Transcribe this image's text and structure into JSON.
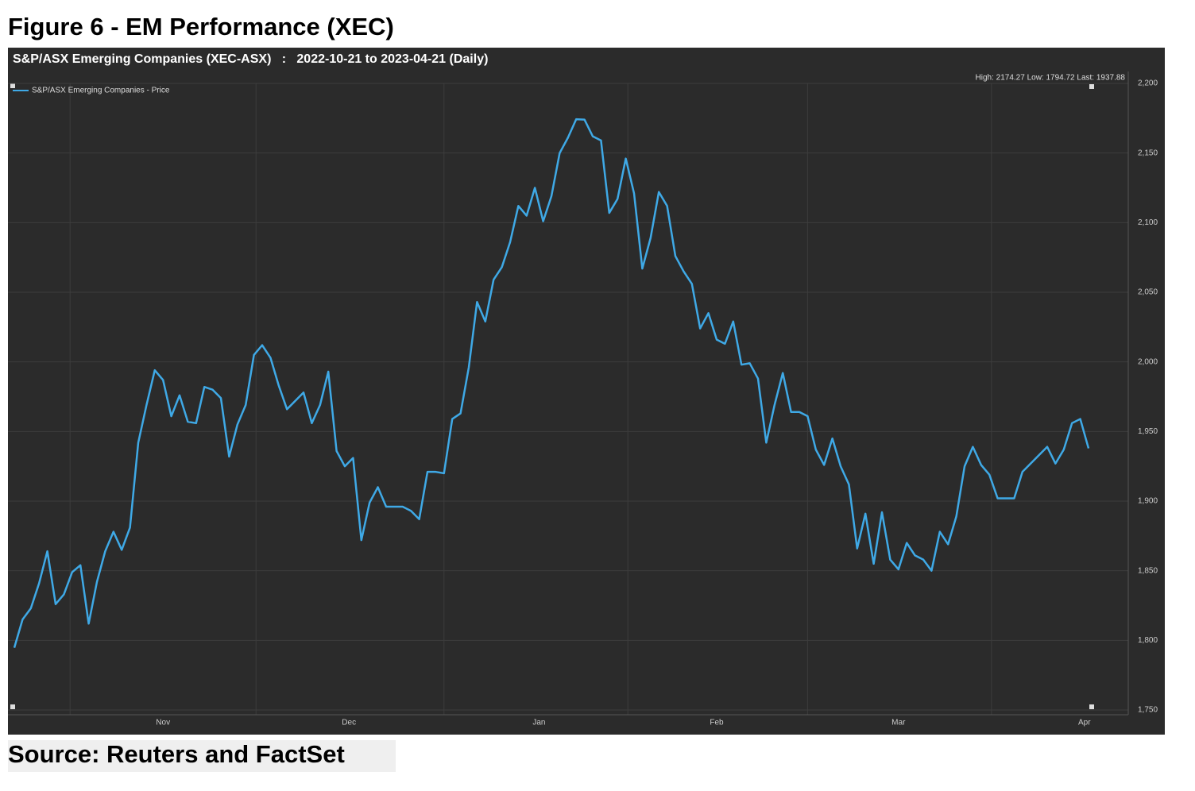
{
  "chart_data": {
    "type": "line",
    "figure_title": "Figure 6 - EM Performance (XEC)",
    "title": "S&P/ASX Emerging Companies (XEC-ASX)   :   2022-10-21 to 2023-04-21 (Daily)",
    "annotation": "High: 2174.27 Low: 1794.72 Last: 1937.88",
    "source": "Source: Reuters and FactSet",
    "xticks": [
      {
        "value": 18,
        "label": "Nov"
      },
      {
        "value": 40.5,
        "label": "Dec"
      },
      {
        "value": 63.5,
        "label": "Jan"
      },
      {
        "value": 85,
        "label": "Feb"
      },
      {
        "value": 107,
        "label": "Mar"
      },
      {
        "value": 129.5,
        "label": "Apr"
      }
    ],
    "ylim": [
      1750,
      2200
    ],
    "yticks": [
      {
        "value": 1750,
        "label": "1,750"
      },
      {
        "value": 1800,
        "label": "1,800"
      },
      {
        "value": 1850,
        "label": "1,850"
      },
      {
        "value": 1900,
        "label": "1,900"
      },
      {
        "value": 1950,
        "label": "1,950"
      },
      {
        "value": 2000,
        "label": "2,000"
      },
      {
        "value": 2050,
        "label": "2,050"
      },
      {
        "value": 2100,
        "label": "2,100"
      },
      {
        "value": 2150,
        "label": "2,150"
      },
      {
        "value": 2200,
        "label": "2,200"
      }
    ],
    "grid": true,
    "legend": "upper left",
    "series": [
      {
        "name": "S&P/ASX Emerging Companies - Price",
        "color": "#3fa9e6",
        "values": [
          1794.72,
          1815,
          1823,
          1841,
          1864,
          1826,
          1833,
          1849,
          1854,
          1812,
          1842,
          1864,
          1878,
          1865,
          1881,
          1942,
          1969,
          1994,
          1987,
          1961,
          1976,
          1957,
          1956,
          1982,
          1980,
          1974,
          1932,
          1955,
          1969,
          2005,
          2012,
          2003,
          1983,
          1966,
          1972,
          1978,
          1956,
          1969,
          1993,
          1936,
          1925,
          1931,
          1872,
          1899,
          1910,
          1896,
          1896,
          1896,
          1893,
          1887,
          1921,
          1921,
          1920,
          1959,
          1963,
          1996,
          2043,
          2029,
          2059,
          2068,
          2086,
          2112,
          2105,
          2125,
          2101,
          2119,
          2150,
          2161,
          2174.27,
          2174,
          2162,
          2159,
          2107,
          2117,
          2146,
          2121,
          2067,
          2089,
          2122,
          2112,
          2076,
          2065,
          2056,
          2024,
          2035,
          2016,
          2013,
          2029,
          1998,
          1999,
          1988,
          1942,
          1969,
          1992,
          1964,
          1964,
          1961,
          1937,
          1926,
          1945,
          1925,
          1912,
          1866,
          1891,
          1855,
          1892,
          1858,
          1851,
          1870,
          1861,
          1858,
          1850,
          1878,
          1869,
          1889,
          1925,
          1939,
          1926,
          1919,
          1902,
          1902,
          1902,
          1921,
          1927,
          1933,
          1939,
          1927,
          1937,
          1956,
          1959,
          1937.88
        ]
      }
    ]
  }
}
